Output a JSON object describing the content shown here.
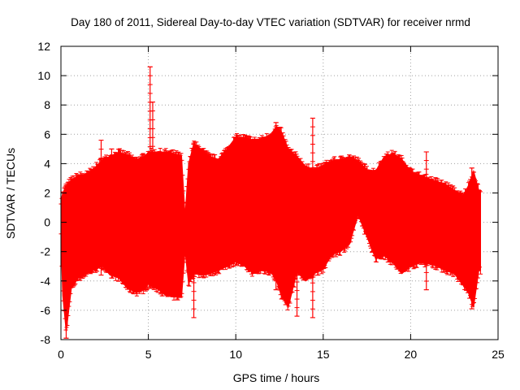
{
  "chart_data": {
    "type": "scatter",
    "title": "Day 180 of 2011, Sidereal Day-to-day VTEC variation (SDTVAR) for receiver nrmd",
    "xlabel": "GPS time / hours",
    "ylabel": "SDTVAR / TECUs",
    "xlim": [
      0,
      25
    ],
    "ylim": [
      -8,
      12
    ],
    "xticks": [
      0,
      5,
      10,
      15,
      20,
      25
    ],
    "yticks": [
      -8,
      -6,
      -4,
      -2,
      0,
      2,
      4,
      6,
      8,
      10,
      12
    ],
    "grid": true,
    "series_color": "#ff0000",
    "series": [
      {
        "name": "SDTVAR",
        "envelope": {
          "x": [
            0.0,
            0.1,
            0.3,
            0.6,
            1.0,
            1.5,
            2.0,
            2.4,
            2.8,
            3.3,
            3.8,
            4.3,
            4.8,
            5.0,
            5.2,
            5.6,
            6.0,
            6.5,
            6.9,
            7.1,
            7.3,
            7.6,
            8.0,
            8.5,
            9.0,
            9.5,
            10.0,
            10.5,
            11.0,
            11.5,
            12.0,
            12.3,
            12.6,
            13.0,
            13.5,
            14.0,
            14.5,
            15.0,
            15.5,
            16.0,
            16.5,
            17.0,
            17.5,
            18.0,
            18.5,
            19.0,
            19.5,
            20.0,
            20.5,
            21.0,
            21.5,
            22.0,
            22.5,
            23.0,
            23.3,
            23.6,
            23.9,
            24.0
          ],
          "upper": [
            1.5,
            2.0,
            2.5,
            2.9,
            3.2,
            3.3,
            3.8,
            4.3,
            4.5,
            4.8,
            4.6,
            4.3,
            4.5,
            4.8,
            4.8,
            4.8,
            4.8,
            4.7,
            4.5,
            0.5,
            4.0,
            5.4,
            5.0,
            4.5,
            4.3,
            5.0,
            5.8,
            5.8,
            5.6,
            5.7,
            6.0,
            6.5,
            6.2,
            5.0,
            4.5,
            3.8,
            3.6,
            3.9,
            4.2,
            4.3,
            4.5,
            4.2,
            3.6,
            3.5,
            4.5,
            4.7,
            4.3,
            3.5,
            3.2,
            3.0,
            2.8,
            2.6,
            2.2,
            1.8,
            2.5,
            3.5,
            2.2,
            2.2
          ],
          "lower": [
            -1.0,
            -5.0,
            -7.5,
            -4.5,
            -3.8,
            -3.5,
            -3.2,
            -3.0,
            -3.6,
            -3.8,
            -4.5,
            -4.8,
            -4.6,
            -4.2,
            -4.4,
            -4.6,
            -5.0,
            -5.1,
            -5.1,
            -2.0,
            -4.2,
            -3.5,
            -3.6,
            -3.5,
            -3.3,
            -3.0,
            -2.7,
            -3.0,
            -3.5,
            -3.3,
            -3.4,
            -3.9,
            -5.0,
            -5.8,
            -3.4,
            -4.0,
            -3.5,
            -3.2,
            -2.2,
            -2.0,
            -1.5,
            0.5,
            -1.0,
            -2.5,
            -2.3,
            -2.8,
            -3.5,
            -3.0,
            -2.8,
            -2.8,
            -3.0,
            -3.3,
            -3.5,
            -4.3,
            -4.8,
            -5.8,
            -3.3,
            -3.3
          ]
        },
        "spikes": [
          {
            "x": 0.3,
            "min": -7.9,
            "max": 2.5
          },
          {
            "x": 2.3,
            "min": -3.6,
            "max": 5.6
          },
          {
            "x": 2.9,
            "min": -3.8,
            "max": 5.0
          },
          {
            "x": 5.1,
            "min": -4.5,
            "max": 10.6
          },
          {
            "x": 5.25,
            "min": -4.5,
            "max": 8.2
          },
          {
            "x": 7.6,
            "min": -6.5,
            "max": 5.4
          },
          {
            "x": 12.3,
            "min": -4.6,
            "max": 6.8
          },
          {
            "x": 13.5,
            "min": -6.4,
            "max": 3.5
          },
          {
            "x": 14.4,
            "min": -6.5,
            "max": 7.1
          },
          {
            "x": 20.9,
            "min": -4.6,
            "max": 4.8
          },
          {
            "x": 23.5,
            "min": -5.9,
            "max": 3.7
          }
        ]
      }
    ]
  }
}
